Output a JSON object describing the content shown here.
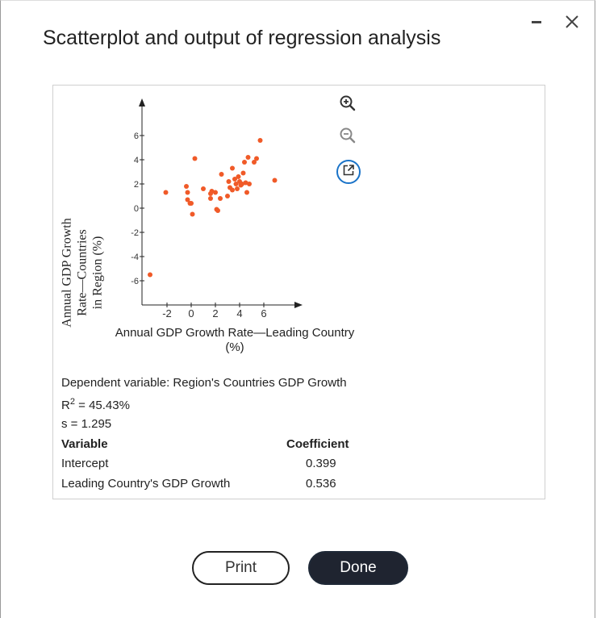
{
  "dialog": {
    "title": "Scatterplot and output of regression analysis",
    "minimize_icon": "minimize-icon",
    "close_icon": "close-icon"
  },
  "chart_data": {
    "type": "scatter",
    "xlabel": "Annual GDP Growth Rate—Leading Country (%)",
    "xlabel_line1": "Annual GDP Growth Rate—Leading Country",
    "xlabel_line2": "(%)",
    "ylabel": "Annual GDP Growth Rate—Countries in Region (%)",
    "ylabel_line1": "Annual GDP Growth Rate—Countries",
    "ylabel_line2": "in Region (%)",
    "x_ticks": [
      -2,
      0,
      2,
      4,
      6
    ],
    "y_ticks": [
      6,
      4,
      2,
      0,
      -2,
      -4,
      -6
    ],
    "xlim": [
      -3,
      8
    ],
    "ylim": [
      -8,
      8
    ],
    "point_color": "#f05a28",
    "points": [
      {
        "x": -3.4,
        "y": -5.5
      },
      {
        "x": -2.1,
        "y": 1.3
      },
      {
        "x": -0.4,
        "y": 1.8
      },
      {
        "x": -0.3,
        "y": 1.3
      },
      {
        "x": -0.3,
        "y": 0.7
      },
      {
        "x": 0.0,
        "y": 0.4
      },
      {
        "x": -0.1,
        "y": 0.4
      },
      {
        "x": 0.1,
        "y": -0.5
      },
      {
        "x": 0.3,
        "y": 4.1
      },
      {
        "x": 1.0,
        "y": 1.6
      },
      {
        "x": 1.6,
        "y": 1.2
      },
      {
        "x": 1.7,
        "y": 1.4
      },
      {
        "x": 1.6,
        "y": 0.8
      },
      {
        "x": 2.0,
        "y": 1.3
      },
      {
        "x": 2.1,
        "y": -0.1
      },
      {
        "x": 2.2,
        "y": -0.2
      },
      {
        "x": 2.4,
        "y": 0.8
      },
      {
        "x": 2.5,
        "y": 2.8
      },
      {
        "x": 3.0,
        "y": 1.0
      },
      {
        "x": 3.1,
        "y": 2.2
      },
      {
        "x": 3.2,
        "y": 1.7
      },
      {
        "x": 3.4,
        "y": 1.5
      },
      {
        "x": 3.4,
        "y": 3.3
      },
      {
        "x": 3.6,
        "y": 2.4
      },
      {
        "x": 3.7,
        "y": 2.0
      },
      {
        "x": 3.8,
        "y": 1.6
      },
      {
        "x": 3.9,
        "y": 2.6
      },
      {
        "x": 4.0,
        "y": 2.2
      },
      {
        "x": 4.1,
        "y": 1.9
      },
      {
        "x": 4.2,
        "y": 2.0
      },
      {
        "x": 4.3,
        "y": 2.9
      },
      {
        "x": 4.4,
        "y": 3.8
      },
      {
        "x": 4.5,
        "y": 2.1
      },
      {
        "x": 4.6,
        "y": 1.3
      },
      {
        "x": 4.7,
        "y": 4.2
      },
      {
        "x": 4.8,
        "y": 2.0
      },
      {
        "x": 5.2,
        "y": 3.8
      },
      {
        "x": 5.4,
        "y": 4.1
      },
      {
        "x": 5.7,
        "y": 5.6
      },
      {
        "x": 6.9,
        "y": 2.3
      }
    ]
  },
  "tools": {
    "zoom_in_icon": "zoom-in-icon",
    "zoom_out_icon": "zoom-out-icon",
    "popout_icon": "external-link-icon"
  },
  "output": {
    "dependent": "Dependent variable: Region's Countries GDP Growth",
    "r2_prefix": "R",
    "r2_sup": "2",
    "r2_value": " = 45.43%",
    "s": "s = 1.295",
    "col_variable": "Variable",
    "col_coefficient": "Coefficient",
    "rows": [
      {
        "variable": "Intercept",
        "coefficient": "0.399"
      },
      {
        "variable": "Leading Country's GDP Growth",
        "coefficient": "0.536"
      }
    ]
  },
  "buttons": {
    "print": "Print",
    "done": "Done"
  }
}
